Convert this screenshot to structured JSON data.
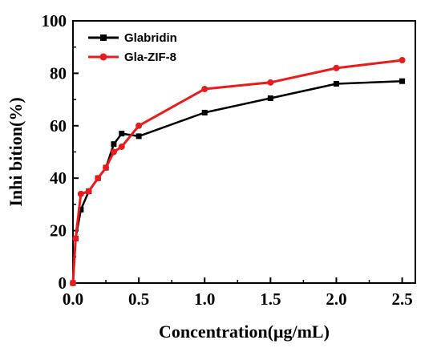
{
  "chart_data": {
    "type": "line",
    "xlabel": "Concentration(μg/mL)",
    "ylabel": "Inhi bition(%)",
    "xlim": [
      0.0,
      2.6
    ],
    "ylim": [
      0,
      100
    ],
    "xticks": [
      "0.0",
      "0.5",
      "1.0",
      "1.5",
      "2.0",
      "2.5"
    ],
    "yticks": [
      "0",
      "20",
      "40",
      "60",
      "80",
      "100"
    ],
    "legend_position": "top-left",
    "grid": false,
    "series": [
      {
        "name": "Glabridin",
        "color": "#000000",
        "marker": "square",
        "x": [
          0.0,
          0.02,
          0.06,
          0.12,
          0.19,
          0.25,
          0.31,
          0.37,
          0.5,
          1.0,
          1.5,
          2.0,
          2.5
        ],
        "y": [
          0,
          17,
          28,
          35,
          40,
          44,
          53,
          57,
          56,
          65,
          70.5,
          76,
          77
        ]
      },
      {
        "name": "Gla-ZIF-8",
        "color": "#e81c1c",
        "marker": "circle",
        "x": [
          0.0,
          0.02,
          0.06,
          0.12,
          0.19,
          0.25,
          0.31,
          0.37,
          0.5,
          1.0,
          1.5,
          2.0,
          2.5
        ],
        "y": [
          0,
          17,
          34,
          35,
          40,
          44,
          50,
          52,
          60,
          74,
          76.5,
          82,
          85
        ]
      }
    ]
  }
}
